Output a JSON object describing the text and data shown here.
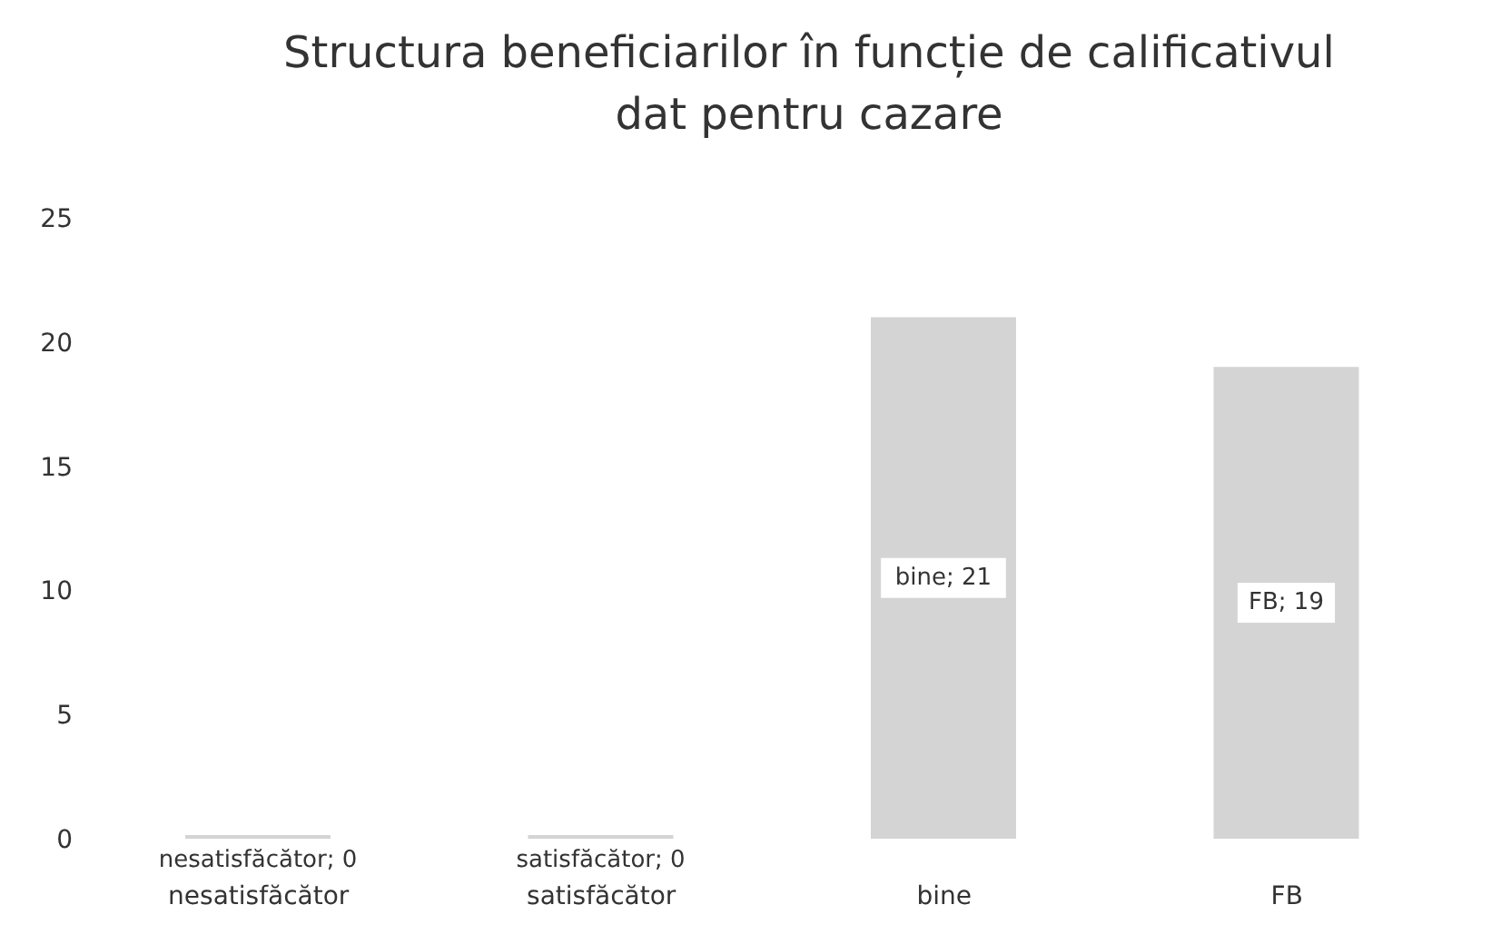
{
  "chart_data": {
    "type": "bar",
    "title": "Structura beneficiarilor în funcție de calificativul dat pentru cazare",
    "categories": [
      "nesatisfăcător",
      "satisfăcător",
      "bine",
      "FB"
    ],
    "values": [
      0,
      0,
      21,
      19
    ],
    "color": "#d4d4d4",
    "value_labels": [
      "nesatisfăcător; 0",
      "satisfăcător; 0",
      "bine; 21",
      "FB; 19"
    ],
    "ylim": [
      0,
      25
    ],
    "yticks": [
      0,
      5,
      10,
      15,
      20,
      25
    ],
    "grid": false,
    "legend": false
  }
}
